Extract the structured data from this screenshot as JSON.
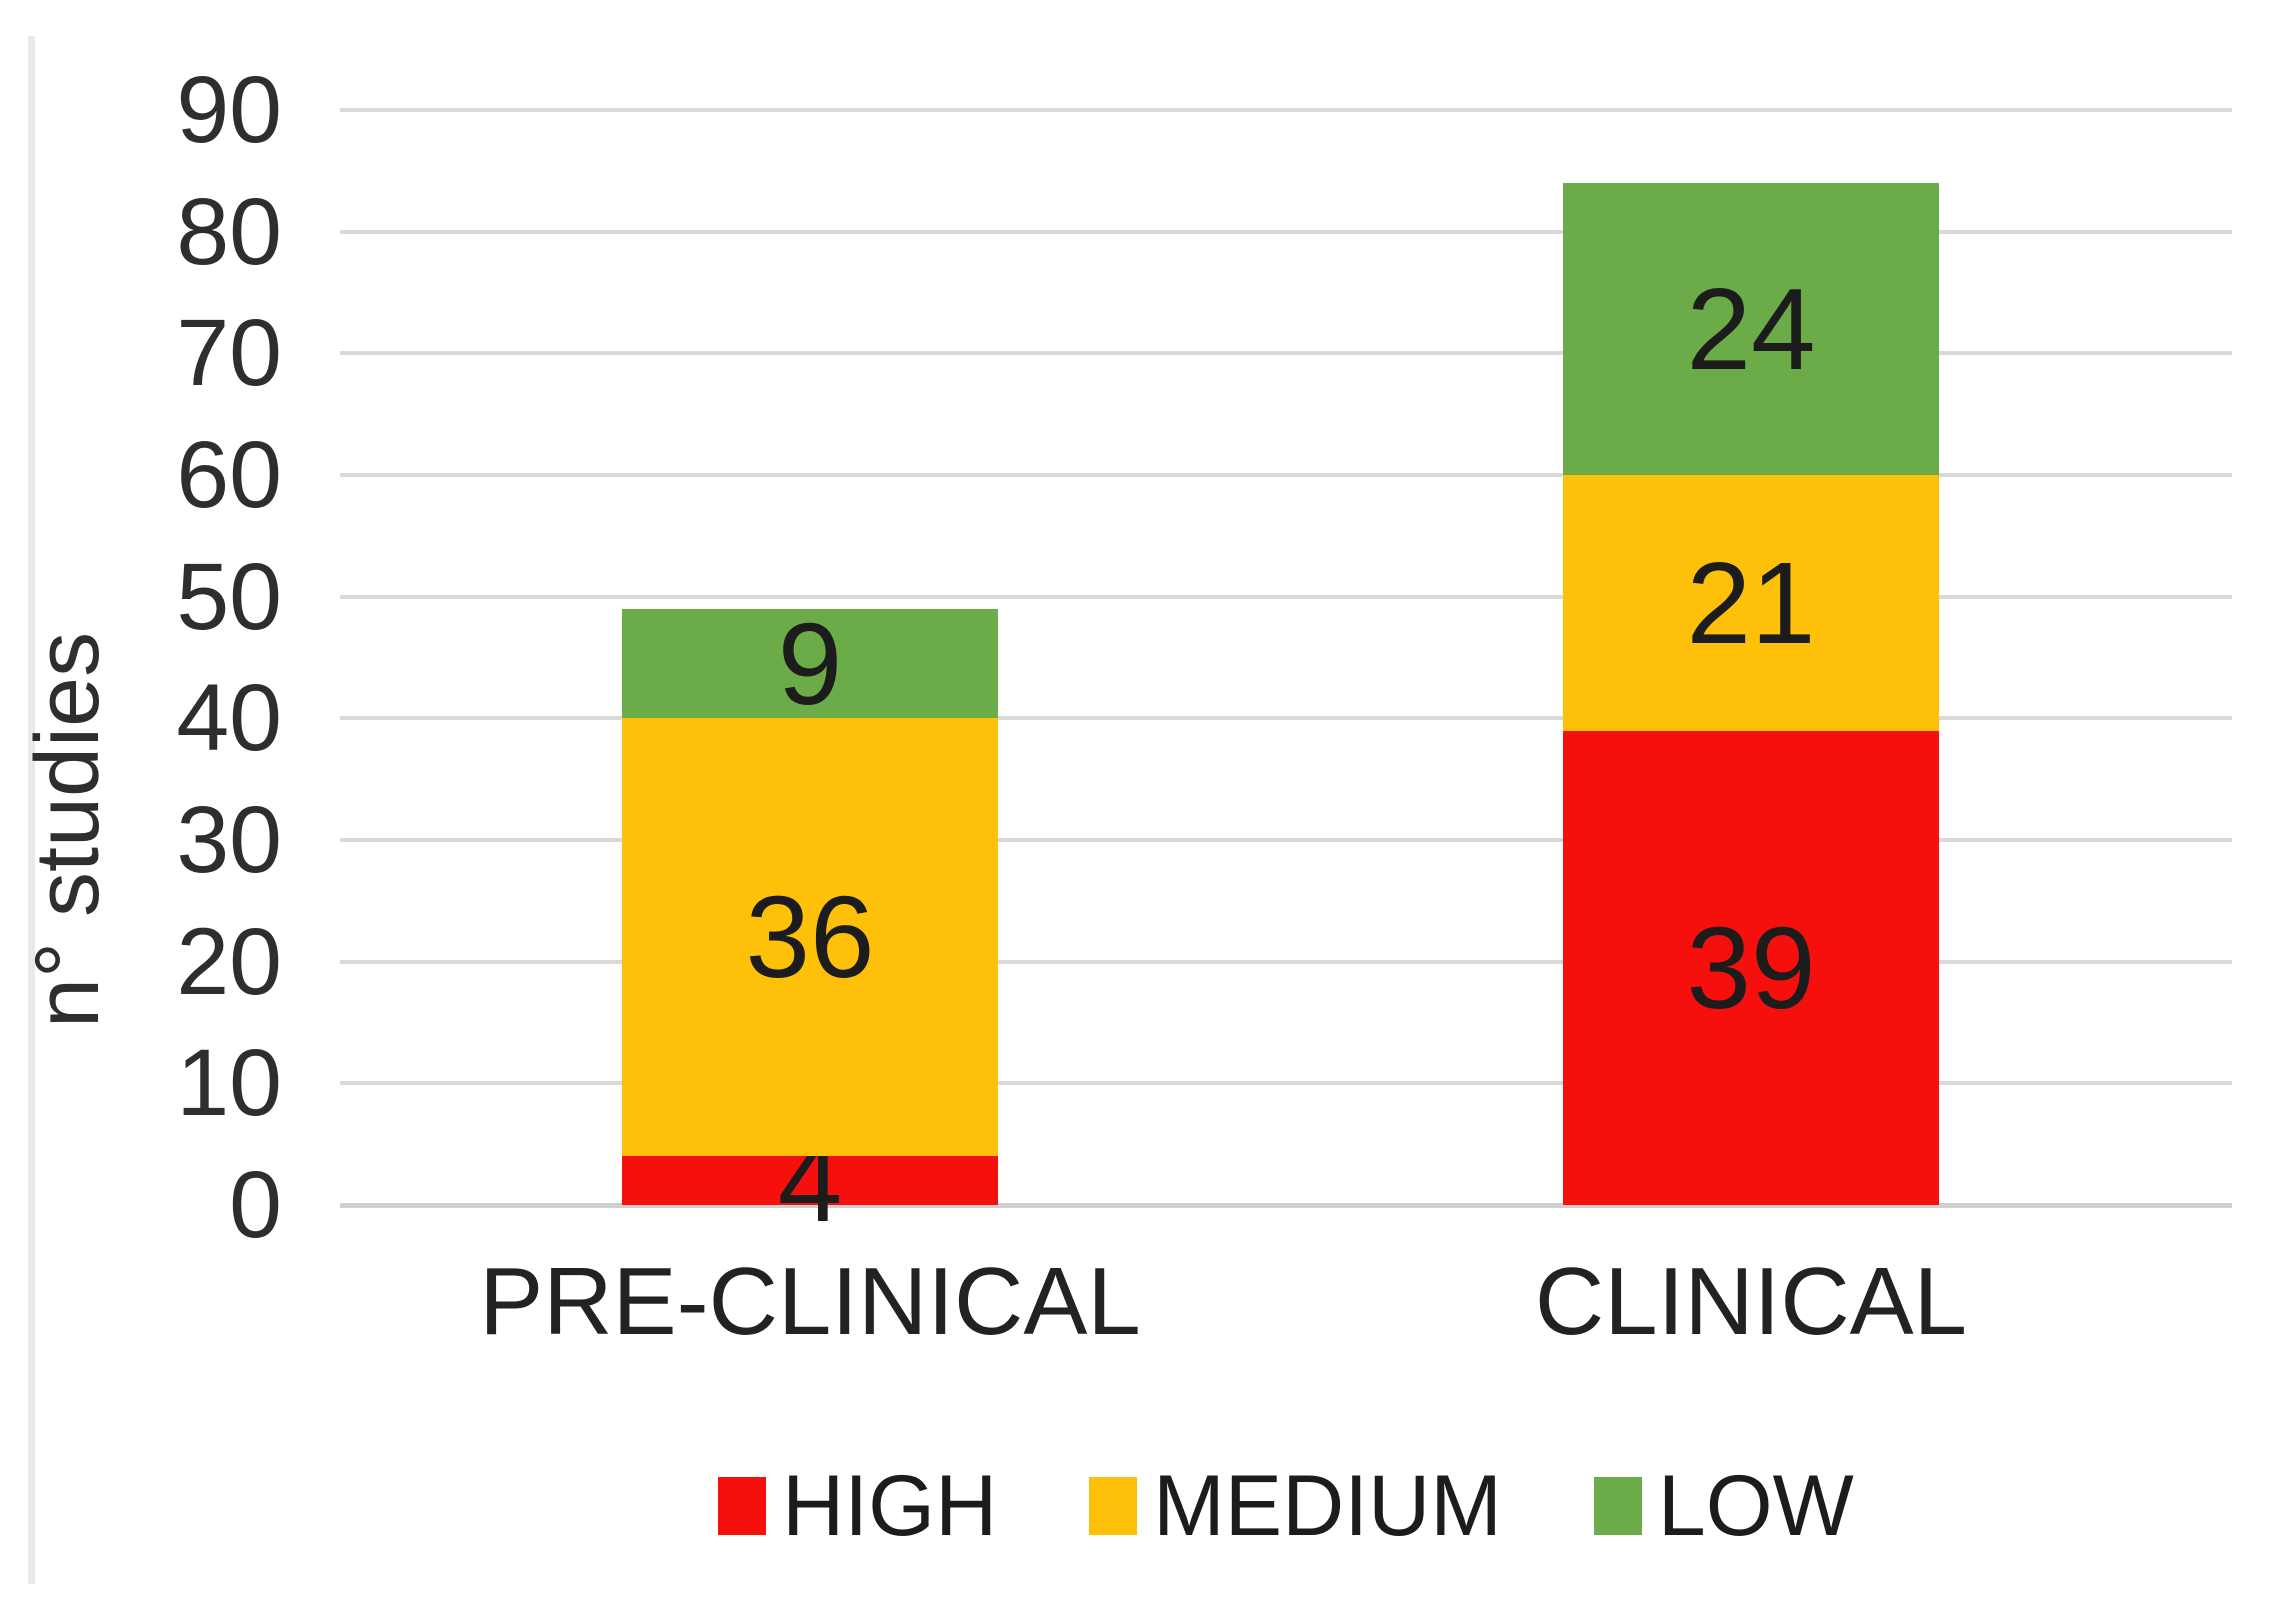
{
  "chart_data": {
    "type": "bar",
    "stacked": true,
    "title": "",
    "xlabel": "",
    "ylabel": "n° studies",
    "ylim": [
      0,
      90
    ],
    "yticks": [
      0,
      10,
      20,
      30,
      40,
      50,
      60,
      70,
      80,
      90
    ],
    "grid": "horizontal",
    "legend_position": "bottom",
    "bar_value_labels": true,
    "categories": [
      "PRE-CLINICAL",
      "CLINICAL"
    ],
    "series": [
      {
        "name": "HIGH",
        "color": "#f5100d",
        "values": [
          4,
          39
        ]
      },
      {
        "name": "MEDIUM",
        "color": "#fec008",
        "values": [
          36,
          21
        ]
      },
      {
        "name": "LOW",
        "color": "#6bab48",
        "values": [
          9,
          24
        ]
      }
    ],
    "totals": [
      49,
      84
    ],
    "gridline_color": "#d9d9d9",
    "background_color": "#ffffff"
  }
}
